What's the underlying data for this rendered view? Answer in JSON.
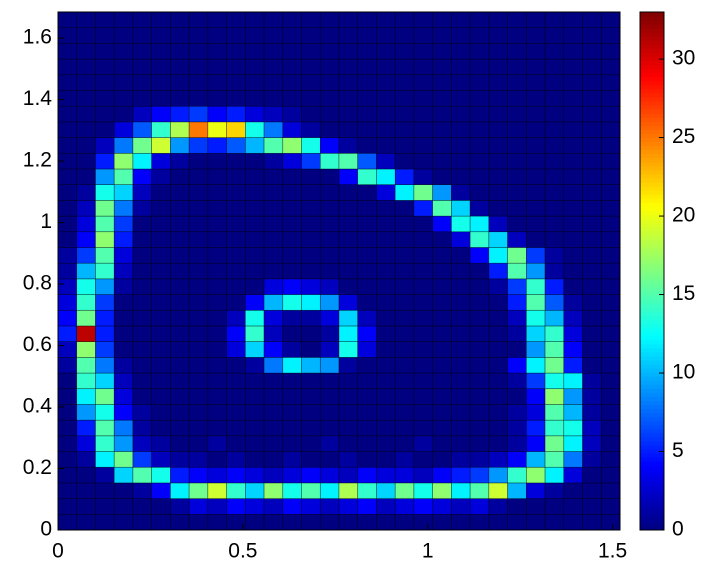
{
  "chart_data": {
    "type": "heatmap",
    "xlim": [
      0,
      1.52
    ],
    "ylim": [
      0,
      1.685
    ],
    "xticks": [
      0,
      0.5,
      1,
      1.5
    ],
    "yticks": [
      0,
      0.2,
      0.4,
      0.6,
      0.8,
      1,
      1.2,
      1.4,
      1.6
    ],
    "clim": [
      0,
      33
    ],
    "cticks": [
      0,
      5,
      10,
      15,
      20,
      25,
      30
    ],
    "colormap": "jet",
    "values": [
      [
        0,
        0,
        0,
        0,
        0,
        0,
        0,
        0,
        0,
        0,
        0,
        0,
        0,
        0,
        0,
        0,
        0,
        0,
        0,
        0,
        0,
        0,
        0,
        0,
        0,
        0,
        0,
        0,
        0,
        0
      ],
      [
        0,
        0,
        0,
        0,
        0,
        0,
        1,
        3,
        2,
        4,
        3,
        2,
        4,
        3,
        2,
        3,
        4,
        2,
        3,
        4,
        3,
        2,
        3,
        1,
        0,
        0,
        0,
        0,
        0,
        0
      ],
      [
        0,
        0,
        0,
        0,
        1,
        4,
        12,
        16,
        19,
        14,
        11,
        17,
        13,
        15,
        12,
        18,
        14,
        11,
        16,
        13,
        17,
        12,
        15,
        19,
        10,
        3,
        1,
        0,
        0,
        0
      ],
      [
        0,
        0,
        1,
        11,
        15,
        13,
        5,
        4,
        3,
        4,
        3,
        2,
        3,
        4,
        3,
        2,
        4,
        3,
        3,
        2,
        4,
        5,
        6,
        9,
        14,
        17,
        12,
        3,
        0,
        0
      ],
      [
        0,
        1,
        12,
        16,
        6,
        2,
        1,
        1,
        0,
        1,
        0,
        0,
        1,
        0,
        0,
        1,
        0,
        0,
        1,
        0,
        0,
        1,
        1,
        2,
        4,
        10,
        15,
        8,
        1,
        0
      ],
      [
        0,
        3,
        14,
        9,
        2,
        1,
        0,
        0,
        1,
        0,
        0,
        0,
        0,
        0,
        1,
        0,
        0,
        0,
        0,
        1,
        0,
        0,
        0,
        0,
        1,
        4,
        16,
        12,
        2,
        0
      ],
      [
        0,
        5,
        15,
        8,
        1,
        0,
        0,
        0,
        0,
        0,
        0,
        0,
        0,
        0,
        0,
        0,
        0,
        0,
        0,
        0,
        0,
        0,
        0,
        0,
        1,
        5,
        14,
        13,
        2,
        0
      ],
      [
        0,
        9,
        13,
        4,
        1,
        0,
        0,
        0,
        0,
        0,
        0,
        0,
        0,
        0,
        0,
        0,
        0,
        0,
        0,
        0,
        0,
        0,
        0,
        0,
        1,
        3,
        15,
        10,
        1,
        0
      ],
      [
        0,
        12,
        16,
        3,
        0,
        0,
        0,
        0,
        0,
        0,
        0,
        0,
        0,
        0,
        0,
        0,
        0,
        0,
        0,
        0,
        0,
        0,
        0,
        0,
        0,
        4,
        17,
        9,
        1,
        0
      ],
      [
        0,
        14,
        11,
        2,
        0,
        0,
        0,
        0,
        0,
        0,
        0,
        0,
        0,
        0,
        0,
        0,
        0,
        0,
        0,
        0,
        0,
        0,
        0,
        0,
        1,
        6,
        13,
        12,
        1,
        0
      ],
      [
        1,
        15,
        8,
        1,
        0,
        0,
        0,
        0,
        0,
        0,
        1,
        8,
        12,
        10,
        9,
        1,
        0,
        0,
        0,
        0,
        0,
        0,
        0,
        0,
        4,
        12,
        16,
        5,
        0,
        0
      ],
      [
        2,
        17,
        6,
        0,
        0,
        0,
        0,
        0,
        0,
        3,
        11,
        4,
        1,
        0,
        2,
        13,
        3,
        0,
        0,
        0,
        0,
        0,
        0,
        0,
        0,
        9,
        15,
        4,
        0,
        0
      ],
      [
        5,
        31,
        5,
        0,
        0,
        0,
        0,
        0,
        0,
        4,
        14,
        2,
        0,
        0,
        1,
        12,
        4,
        0,
        0,
        0,
        0,
        0,
        0,
        0,
        1,
        11,
        14,
        3,
        0,
        0
      ],
      [
        4,
        16,
        5,
        0,
        0,
        0,
        0,
        0,
        0,
        2,
        13,
        3,
        1,
        1,
        3,
        11,
        2,
        0,
        0,
        0,
        0,
        0,
        0,
        0,
        2,
        13,
        10,
        2,
        0,
        0
      ],
      [
        3,
        14,
        6,
        0,
        0,
        0,
        0,
        0,
        0,
        0,
        4,
        10,
        13,
        12,
        9,
        3,
        0,
        0,
        0,
        0,
        0,
        0,
        0,
        0,
        5,
        15,
        7,
        1,
        0,
        0
      ],
      [
        2,
        13,
        9,
        1,
        0,
        0,
        0,
        0,
        0,
        0,
        0,
        3,
        4,
        3,
        2,
        0,
        0,
        0,
        0,
        0,
        0,
        0,
        0,
        1,
        6,
        14,
        5,
        0,
        0,
        0
      ],
      [
        1,
        10,
        14,
        2,
        0,
        0,
        0,
        0,
        0,
        0,
        0,
        0,
        0,
        0,
        0,
        0,
        0,
        0,
        0,
        0,
        0,
        0,
        0,
        5,
        15,
        9,
        1,
        0,
        0,
        0
      ],
      [
        1,
        6,
        15,
        3,
        0,
        0,
        0,
        0,
        0,
        0,
        0,
        0,
        0,
        0,
        0,
        0,
        0,
        0,
        0,
        0,
        0,
        0,
        4,
        12,
        16,
        6,
        1,
        0,
        0,
        0
      ],
      [
        0,
        4,
        17,
        5,
        0,
        0,
        0,
        0,
        0,
        0,
        0,
        0,
        0,
        0,
        0,
        0,
        0,
        0,
        0,
        0,
        0,
        3,
        14,
        11,
        2,
        0,
        0,
        0,
        0,
        0
      ],
      [
        0,
        3,
        15,
        6,
        0,
        0,
        0,
        0,
        0,
        0,
        0,
        0,
        0,
        0,
        0,
        0,
        0,
        0,
        0,
        0,
        4,
        13,
        12,
        2,
        0,
        0,
        0,
        0,
        0,
        0
      ],
      [
        0,
        2,
        16,
        8,
        1,
        0,
        0,
        0,
        0,
        0,
        0,
        0,
        0,
        0,
        0,
        0,
        0,
        0,
        0,
        5,
        15,
        11,
        1,
        0,
        0,
        0,
        0,
        0,
        0,
        0
      ],
      [
        0,
        1,
        13,
        11,
        2,
        0,
        0,
        0,
        0,
        0,
        0,
        0,
        0,
        0,
        0,
        0,
        0,
        3,
        12,
        16,
        9,
        1,
        0,
        0,
        0,
        0,
        0,
        0,
        0,
        0
      ],
      [
        0,
        0,
        9,
        15,
        4,
        1,
        0,
        0,
        0,
        0,
        0,
        0,
        0,
        0,
        0,
        4,
        14,
        12,
        5,
        1,
        0,
        0,
        0,
        0,
        0,
        0,
        0,
        0,
        0,
        0
      ],
      [
        0,
        0,
        5,
        17,
        12,
        3,
        1,
        0,
        0,
        0,
        0,
        1,
        3,
        6,
        14,
        15,
        7,
        2,
        0,
        0,
        0,
        0,
        0,
        0,
        0,
        0,
        0,
        0,
        0,
        0
      ],
      [
        0,
        0,
        2,
        8,
        16,
        19,
        9,
        6,
        5,
        7,
        10,
        15,
        17,
        13,
        4,
        1,
        0,
        0,
        0,
        0,
        0,
        0,
        0,
        0,
        0,
        0,
        0,
        0,
        0,
        0
      ],
      [
        0,
        0,
        0,
        3,
        7,
        14,
        18,
        25,
        20,
        22,
        13,
        8,
        3,
        1,
        0,
        0,
        0,
        0,
        0,
        0,
        0,
        0,
        0,
        0,
        0,
        0,
        0,
        0,
        0,
        0
      ],
      [
        0,
        0,
        0,
        0,
        2,
        4,
        5,
        6,
        4,
        5,
        3,
        2,
        1,
        0,
        0,
        0,
        0,
        0,
        0,
        0,
        0,
        0,
        0,
        0,
        0,
        0,
        0,
        0,
        0,
        0
      ],
      [
        0,
        0,
        0,
        0,
        0,
        0,
        0,
        0,
        0,
        0,
        0,
        0,
        0,
        0,
        0,
        0,
        0,
        0,
        0,
        0,
        0,
        0,
        0,
        0,
        0,
        0,
        0,
        0,
        0,
        0
      ],
      [
        0,
        0,
        0,
        0,
        0,
        0,
        0,
        0,
        0,
        0,
        0,
        0,
        0,
        0,
        0,
        0,
        0,
        0,
        0,
        0,
        0,
        0,
        0,
        0,
        0,
        0,
        0,
        0,
        0,
        0
      ],
      [
        0,
        0,
        0,
        0,
        0,
        0,
        0,
        0,
        0,
        0,
        0,
        0,
        0,
        0,
        0,
        0,
        0,
        0,
        0,
        0,
        0,
        0,
        0,
        0,
        0,
        0,
        0,
        0,
        0,
        0
      ],
      [
        0,
        0,
        0,
        0,
        0,
        0,
        0,
        0,
        0,
        0,
        0,
        0,
        0,
        0,
        0,
        0,
        0,
        0,
        0,
        0,
        0,
        0,
        0,
        0,
        0,
        0,
        0,
        0,
        0,
        0
      ],
      [
        0,
        0,
        0,
        0,
        0,
        0,
        0,
        0,
        0,
        0,
        0,
        0,
        0,
        0,
        0,
        0,
        0,
        0,
        0,
        0,
        0,
        0,
        0,
        0,
        0,
        0,
        0,
        0,
        0,
        0
      ],
      [
        0,
        0,
        0,
        0,
        0,
        0,
        0,
        0,
        0,
        0,
        0,
        0,
        0,
        0,
        0,
        0,
        0,
        0,
        0,
        0,
        0,
        0,
        0,
        0,
        0,
        0,
        0,
        0,
        0,
        0
      ]
    ]
  }
}
